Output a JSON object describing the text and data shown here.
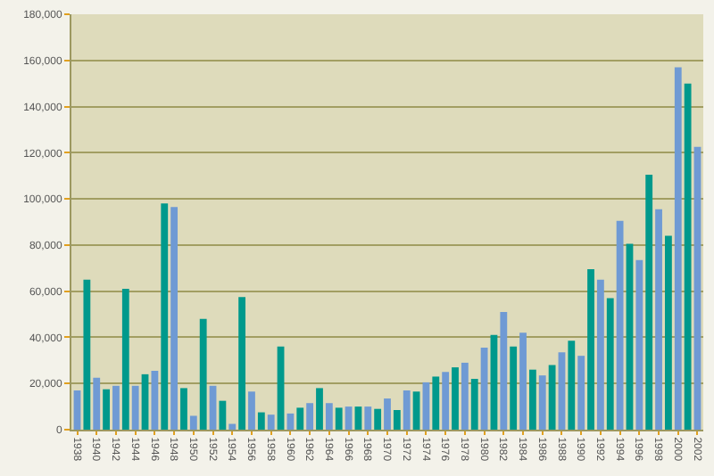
{
  "chart_data": {
    "type": "bar",
    "categories": [
      "1938",
      null,
      "1940",
      null,
      "1942",
      null,
      "1944",
      null,
      "1946",
      null,
      "1948",
      null,
      "1950",
      null,
      "1952",
      null,
      "1954",
      null,
      "1956",
      null,
      "1958",
      null,
      "1960",
      null,
      "1962",
      null,
      "1964",
      null,
      "1966",
      null,
      "1968",
      null,
      "1970",
      null,
      "1972",
      null,
      "1974",
      null,
      "1976",
      null,
      "1978",
      null,
      "1980",
      null,
      "1982",
      null,
      "1984",
      null,
      "1986",
      null,
      "1988",
      null,
      "1990",
      null,
      "1992",
      null,
      "1994",
      null,
      "1996",
      null,
      "1998",
      null,
      "2000",
      null,
      "2002"
    ],
    "values": [
      17000,
      65000,
      22500,
      17500,
      19000,
      61000,
      19000,
      24000,
      25500,
      98000,
      96500,
      18000,
      6000,
      48000,
      19000,
      12500,
      2500,
      57500,
      16500,
      7500,
      6500,
      36000,
      7000,
      9500,
      11500,
      18000,
      11500,
      9500,
      10000,
      10000,
      10000,
      9000,
      13500,
      8500,
      17000,
      16500,
      20500,
      23000,
      25000,
      27000,
      29000,
      22000,
      35500,
      41000,
      51000,
      36000,
      42000,
      26000,
      23500,
      28000,
      33500,
      38500,
      32000,
      69500,
      65000,
      57000,
      90500,
      80500,
      73500,
      110500,
      95500,
      84000,
      157000,
      150000,
      122500
    ],
    "colors": [
      "#6f9ad4",
      "#00998c",
      "#6f9ad4",
      "#00998c",
      "#6f9ad4",
      "#00998c",
      "#6f9ad4",
      "#00998c",
      "#6f9ad4",
      "#00998c",
      "#6f9ad4",
      "#00998c",
      "#6f9ad4",
      "#00998c",
      "#6f9ad4",
      "#00998c",
      "#6f9ad4",
      "#00998c",
      "#6f9ad4",
      "#00998c",
      "#6f9ad4",
      "#00998c",
      "#6f9ad4",
      "#00998c",
      "#6f9ad4",
      "#00998c",
      "#6f9ad4",
      "#00998c",
      "#6f9ad4",
      "#00998c",
      "#6f9ad4",
      "#00998c",
      "#6f9ad4",
      "#00998c",
      "#6f9ad4",
      "#00998c",
      "#6f9ad4",
      "#00998c",
      "#6f9ad4",
      "#00998c",
      "#6f9ad4",
      "#00998c",
      "#6f9ad4",
      "#00998c",
      "#6f9ad4",
      "#00998c",
      "#6f9ad4",
      "#00998c",
      "#6f9ad4",
      "#00998c",
      "#6f9ad4",
      "#00998c",
      "#6f9ad4",
      "#00998c",
      "#6f9ad4",
      "#00998c",
      "#6f9ad4",
      "#00998c",
      "#6f9ad4",
      "#00998c",
      "#6f9ad4",
      "#00998c",
      "#6f9ad4",
      "#00998c",
      "#6f9ad4"
    ],
    "ylim": [
      0,
      180000
    ],
    "yticks": [
      {
        "value": 0,
        "label": "0"
      },
      {
        "value": 20000,
        "label": "20,000"
      },
      {
        "value": 40000,
        "label": "40,000"
      },
      {
        "value": 60000,
        "label": "60,000"
      },
      {
        "value": 80000,
        "label": "80,000"
      },
      {
        "value": 100000,
        "label": "100,000"
      },
      {
        "value": 120000,
        "label": "120,000"
      },
      {
        "value": 140000,
        "label": "140,000"
      },
      {
        "value": 160000,
        "label": "160,000"
      },
      {
        "value": 180000,
        "label": "180,000"
      }
    ],
    "grid": "y"
  }
}
